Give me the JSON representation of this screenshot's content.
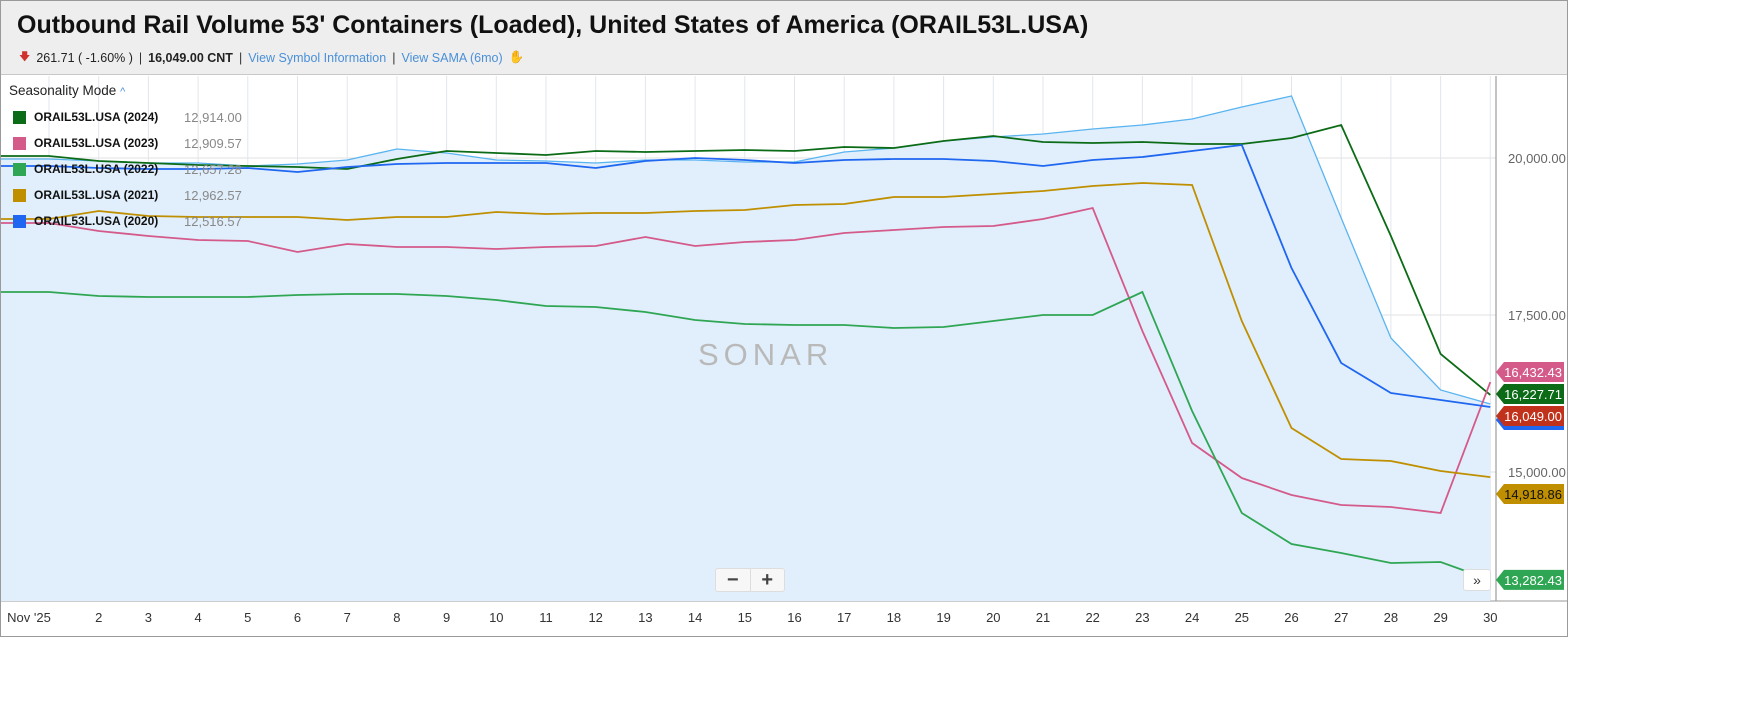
{
  "header": {
    "title": "Outbound Rail Volume 53' Containers (Loaded), United States of America (ORAIL53L.USA)",
    "change": "261.71 ( -1.60% )",
    "value": "16,049.00 CNT",
    "link_symbol": "View Symbol Information",
    "link_sama": "View SAMA (6mo)"
  },
  "legend": {
    "title": "Seasonality Mode",
    "items": [
      {
        "name": "ORAIL53L.USA (2024)",
        "value": "12,914.00",
        "color": "#0b6b16"
      },
      {
        "name": "ORAIL53L.USA (2023)",
        "value": "12,909.57",
        "color": "#d45a8a"
      },
      {
        "name": "ORAIL53L.USA (2022)",
        "value": "12,657.28",
        "color": "#2fa653"
      },
      {
        "name": "ORAIL53L.USA (2021)",
        "value": "12,962.57",
        "color": "#bf8f00"
      },
      {
        "name": "ORAIL53L.USA (2020)",
        "value": "12,516.57",
        "color": "#1f66f0"
      }
    ]
  },
  "controls": {
    "zoom_out": "−",
    "zoom_in": "+",
    "scroll_end": "»"
  },
  "watermark": "SONAR",
  "chart_data": {
    "type": "line",
    "title": "Outbound Rail Volume 53' Containers (Loaded), United States of America (ORAIL53L.USA)",
    "x": [
      1,
      2,
      3,
      4,
      5,
      6,
      7,
      8,
      9,
      10,
      11,
      12,
      13,
      14,
      15,
      16,
      17,
      18,
      19,
      20,
      21,
      22,
      23,
      24,
      25,
      26,
      27,
      28,
      29,
      30
    ],
    "xtick_labels": [
      "Nov '25",
      "2",
      "3",
      "4",
      "5",
      "6",
      "7",
      "8",
      "9",
      "10",
      "11",
      "12",
      "13",
      "14",
      "15",
      "16",
      "17",
      "18",
      "19",
      "20",
      "21",
      "22",
      "23",
      "24",
      "25",
      "26",
      "27",
      "28",
      "29",
      "30"
    ],
    "ylim": [
      12800,
      21500
    ],
    "yticks": [
      {
        "v": 20000,
        "label": "20,000.00"
      },
      {
        "v": 17500,
        "label": "17,500.00"
      },
      {
        "v": 15000,
        "label": "15,000.00"
      }
    ],
    "grid": true,
    "series": [
      {
        "name": "ORAIL53L.USA",
        "color": "#5ab4f0",
        "area": true,
        "last_label": "16,049.00",
        "label_color": "#c0321c",
        "values": [
          19984,
          19952,
          19920,
          19920,
          19873,
          19904,
          19968,
          20143,
          20080,
          19968,
          19952,
          19920,
          19968,
          19968,
          19936,
          19936,
          20096,
          20159,
          20271,
          20334,
          20382,
          20462,
          20525,
          20621,
          20812,
          20987,
          19045,
          17134,
          16306,
          16083
        ]
      },
      {
        "name": "ORAIL53L.USA (2024)",
        "color": "#0b6b16",
        "last_label": "16,227.71",
        "values": [
          20032,
          19952,
          19920,
          19889,
          19873,
          19857,
          19825,
          19984,
          20111,
          20080,
          20048,
          20111,
          20096,
          20111,
          20127,
          20111,
          20175,
          20159,
          20271,
          20350,
          20255,
          20239,
          20255,
          20223,
          20223,
          20318,
          20525,
          18758,
          16879,
          16227.71
        ]
      },
      {
        "name": "ORAIL53L.USA (2023)",
        "color": "#d45a8a",
        "last_label": "16,432.43",
        "values": [
          18965,
          18838,
          18758,
          18694,
          18678,
          18503,
          18631,
          18583,
          18583,
          18551,
          18583,
          18599,
          18742,
          18599,
          18662,
          18694,
          18806,
          18853,
          18901,
          18917,
          19029,
          19204,
          17245,
          15462,
          14904,
          14634,
          14474,
          14442,
          14347,
          16432.43
        ]
      },
      {
        "name": "ORAIL53L.USA (2022)",
        "color": "#2fa653",
        "last_label": "13,282.43",
        "values": [
          17866,
          17802,
          17787,
          17787,
          17787,
          17818,
          17834,
          17834,
          17802,
          17739,
          17643,
          17627,
          17548,
          17420,
          17357,
          17341,
          17341,
          17293,
          17309,
          17404,
          17500,
          17500,
          17866,
          15971,
          14347,
          13853,
          13710,
          13551,
          13567,
          13282.43
        ]
      },
      {
        "name": "ORAIL53L.USA (2021)",
        "color": "#bf8f00",
        "last_label": "14,918.86",
        "values": [
          19029,
          19156,
          19076,
          19061,
          19061,
          19061,
          19013,
          19061,
          19061,
          19140,
          19108,
          19124,
          19124,
          19156,
          19172,
          19252,
          19268,
          19379,
          19379,
          19427,
          19475,
          19554,
          19602,
          19570,
          17404,
          15701,
          15207,
          15175,
          15016,
          14918.86
        ]
      },
      {
        "name": "ORAIL53L.USA (2020)",
        "color": "#1f66f0",
        "last_label": "",
        "values": [
          19873,
          19841,
          19825,
          19825,
          19841,
          19777,
          19857,
          19904,
          19920,
          19920,
          19920,
          19841,
          19952,
          20000,
          19968,
          19920,
          19968,
          19984,
          19984,
          19952,
          19873,
          19968,
          20016,
          20111,
          20207,
          18248,
          16736,
          16258,
          16146,
          16035
        ]
      }
    ]
  }
}
